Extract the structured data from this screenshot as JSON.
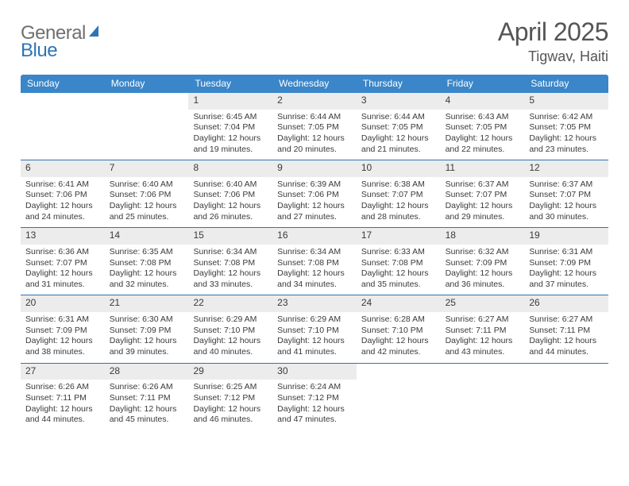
{
  "logo": {
    "part1": "General",
    "part2": "Blue"
  },
  "title": "April 2025",
  "location": "Tigwav, Haiti",
  "colors": {
    "header_bg": "#3a86c8",
    "header_text": "#ffffff",
    "daynum_bg": "#ececec",
    "text": "#3a3a3a",
    "rule": "#2f74b5",
    "logo_gray": "#6f6f6f",
    "logo_blue": "#2f74b5"
  },
  "dayNames": [
    "Sunday",
    "Monday",
    "Tuesday",
    "Wednesday",
    "Thursday",
    "Friday",
    "Saturday"
  ],
  "weeks": [
    [
      {
        "n": "",
        "sr": "",
        "ss": "",
        "dl": ""
      },
      {
        "n": "",
        "sr": "",
        "ss": "",
        "dl": ""
      },
      {
        "n": "1",
        "sr": "6:45 AM",
        "ss": "7:04 PM",
        "dl": "12 hours and 19 minutes."
      },
      {
        "n": "2",
        "sr": "6:44 AM",
        "ss": "7:05 PM",
        "dl": "12 hours and 20 minutes."
      },
      {
        "n": "3",
        "sr": "6:44 AM",
        "ss": "7:05 PM",
        "dl": "12 hours and 21 minutes."
      },
      {
        "n": "4",
        "sr": "6:43 AM",
        "ss": "7:05 PM",
        "dl": "12 hours and 22 minutes."
      },
      {
        "n": "5",
        "sr": "6:42 AM",
        "ss": "7:05 PM",
        "dl": "12 hours and 23 minutes."
      }
    ],
    [
      {
        "n": "6",
        "sr": "6:41 AM",
        "ss": "7:06 PM",
        "dl": "12 hours and 24 minutes."
      },
      {
        "n": "7",
        "sr": "6:40 AM",
        "ss": "7:06 PM",
        "dl": "12 hours and 25 minutes."
      },
      {
        "n": "8",
        "sr": "6:40 AM",
        "ss": "7:06 PM",
        "dl": "12 hours and 26 minutes."
      },
      {
        "n": "9",
        "sr": "6:39 AM",
        "ss": "7:06 PM",
        "dl": "12 hours and 27 minutes."
      },
      {
        "n": "10",
        "sr": "6:38 AM",
        "ss": "7:07 PM",
        "dl": "12 hours and 28 minutes."
      },
      {
        "n": "11",
        "sr": "6:37 AM",
        "ss": "7:07 PM",
        "dl": "12 hours and 29 minutes."
      },
      {
        "n": "12",
        "sr": "6:37 AM",
        "ss": "7:07 PM",
        "dl": "12 hours and 30 minutes."
      }
    ],
    [
      {
        "n": "13",
        "sr": "6:36 AM",
        "ss": "7:07 PM",
        "dl": "12 hours and 31 minutes."
      },
      {
        "n": "14",
        "sr": "6:35 AM",
        "ss": "7:08 PM",
        "dl": "12 hours and 32 minutes."
      },
      {
        "n": "15",
        "sr": "6:34 AM",
        "ss": "7:08 PM",
        "dl": "12 hours and 33 minutes."
      },
      {
        "n": "16",
        "sr": "6:34 AM",
        "ss": "7:08 PM",
        "dl": "12 hours and 34 minutes."
      },
      {
        "n": "17",
        "sr": "6:33 AM",
        "ss": "7:08 PM",
        "dl": "12 hours and 35 minutes."
      },
      {
        "n": "18",
        "sr": "6:32 AM",
        "ss": "7:09 PM",
        "dl": "12 hours and 36 minutes."
      },
      {
        "n": "19",
        "sr": "6:31 AM",
        "ss": "7:09 PM",
        "dl": "12 hours and 37 minutes."
      }
    ],
    [
      {
        "n": "20",
        "sr": "6:31 AM",
        "ss": "7:09 PM",
        "dl": "12 hours and 38 minutes."
      },
      {
        "n": "21",
        "sr": "6:30 AM",
        "ss": "7:09 PM",
        "dl": "12 hours and 39 minutes."
      },
      {
        "n": "22",
        "sr": "6:29 AM",
        "ss": "7:10 PM",
        "dl": "12 hours and 40 minutes."
      },
      {
        "n": "23",
        "sr": "6:29 AM",
        "ss": "7:10 PM",
        "dl": "12 hours and 41 minutes."
      },
      {
        "n": "24",
        "sr": "6:28 AM",
        "ss": "7:10 PM",
        "dl": "12 hours and 42 minutes."
      },
      {
        "n": "25",
        "sr": "6:27 AM",
        "ss": "7:11 PM",
        "dl": "12 hours and 43 minutes."
      },
      {
        "n": "26",
        "sr": "6:27 AM",
        "ss": "7:11 PM",
        "dl": "12 hours and 44 minutes."
      }
    ],
    [
      {
        "n": "27",
        "sr": "6:26 AM",
        "ss": "7:11 PM",
        "dl": "12 hours and 44 minutes."
      },
      {
        "n": "28",
        "sr": "6:26 AM",
        "ss": "7:11 PM",
        "dl": "12 hours and 45 minutes."
      },
      {
        "n": "29",
        "sr": "6:25 AM",
        "ss": "7:12 PM",
        "dl": "12 hours and 46 minutes."
      },
      {
        "n": "30",
        "sr": "6:24 AM",
        "ss": "7:12 PM",
        "dl": "12 hours and 47 minutes."
      },
      {
        "n": "",
        "sr": "",
        "ss": "",
        "dl": ""
      },
      {
        "n": "",
        "sr": "",
        "ss": "",
        "dl": ""
      },
      {
        "n": "",
        "sr": "",
        "ss": "",
        "dl": ""
      }
    ]
  ],
  "labels": {
    "sunrise": "Sunrise: ",
    "sunset": "Sunset: ",
    "daylight": "Daylight: "
  }
}
